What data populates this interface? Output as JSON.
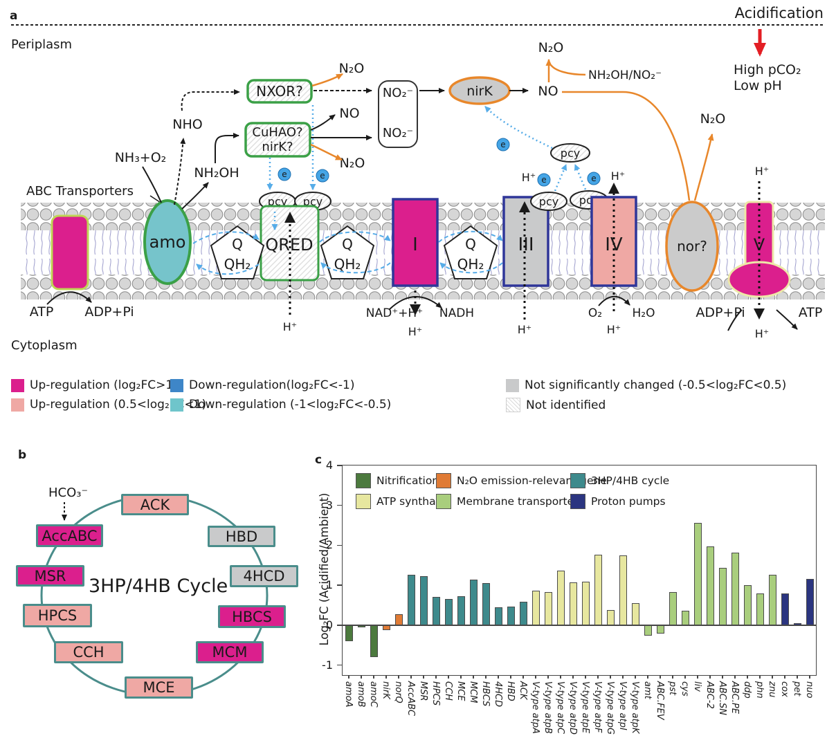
{
  "panel_a": {
    "tag": "a",
    "periplasm": "Periplasm",
    "cytoplasm": "Cytoplasm",
    "abc_transporters": "ABC Transporters",
    "acidification": "Acidification",
    "high_pco2": "High pCO₂",
    "low_ph": "Low pH",
    "atp": "ATP",
    "adp_pi": "ADP+Pi",
    "nh3_o2": "NH₃+O₂",
    "nho": "NHO",
    "nh2oh": "NH₂OH",
    "amo": "amo",
    "nxor": "NXOR?",
    "cuhao": "CuHAO?",
    "nirk_q": "nirK?",
    "n2o": "N₂O",
    "no": "NO",
    "no2": "NO₂⁻",
    "nirk": "nirK",
    "nh2oh_no2": "NH₂OH/NO₂⁻",
    "pcy": "pcy",
    "e": "e",
    "q": "Q",
    "qh2": "QH₂",
    "qred": "QRED",
    "h": "H⁺",
    "complex_i": "I",
    "complex_iii": "III",
    "complex_iv": "IV",
    "complex_v": "V",
    "nor": "nor?",
    "nad_h": "NAD⁺+H⁺",
    "nadh": "NADH",
    "o2": "O₂",
    "h2o": "H₂O"
  },
  "legend": {
    "items": [
      {
        "swatch": "magenta",
        "label": "Up-regulation (log₂FC>1)"
      },
      {
        "swatch": "pink",
        "label": "Up-regulation (0.5<log₂FC<1)"
      },
      {
        "swatch": "blue",
        "label": "Down-regulation(log₂FC<-1)"
      },
      {
        "swatch": "teal",
        "label": "Down-regulation (-1<log₂FC<-0.5)"
      },
      {
        "swatch": "gray",
        "label": "Not significantly changed (-0.5<log₂FC<0.5)"
      },
      {
        "swatch": "hatch",
        "label": "Not identified"
      }
    ]
  },
  "panel_b": {
    "tag": "b",
    "hco3": "HCO₃⁻",
    "title": "3HP/4HB Cycle",
    "nodes": [
      {
        "label": "ACK",
        "status": "up_mod"
      },
      {
        "label": "HBD",
        "status": "ns"
      },
      {
        "label": "4HCD",
        "status": "ns"
      },
      {
        "label": "HBCS",
        "status": "up_strong"
      },
      {
        "label": "MCM",
        "status": "up_strong"
      },
      {
        "label": "MCE",
        "status": "up_mod"
      },
      {
        "label": "CCH",
        "status": "up_mod"
      },
      {
        "label": "HPCS",
        "status": "up_mod"
      },
      {
        "label": "MSR",
        "status": "up_strong"
      },
      {
        "label": "AccABC",
        "status": "up_strong"
      }
    ]
  },
  "panel_c": {
    "tag": "c"
  },
  "chart_data": {
    "type": "bar",
    "title": "",
    "xlabel": "",
    "ylabel": "Log₂FC (Acidified/Ambient)",
    "ylim": [
      -1.25,
      4
    ],
    "yticks": [
      4,
      3,
      2,
      1,
      0,
      -1
    ],
    "grid": false,
    "legend_position": "top-inside",
    "group_colors": {
      "nit": "#4C7A3E",
      "n2o": "#E07B35",
      "cyc": "#3E8A8C",
      "atp": "#E7E79F",
      "mem": "#A9CE7D",
      "pump": "#2B3580"
    },
    "legend": [
      {
        "label": "Nitrification",
        "group": "nit"
      },
      {
        "label": "N₂O emission-relevant gene",
        "group": "n2o"
      },
      {
        "label": "3HP/4HB cycle",
        "group": "cyc"
      },
      {
        "label": "ATP synthase",
        "group": "atp"
      },
      {
        "label": "Membrane transporters",
        "group": "mem"
      },
      {
        "label": "Proton pumps",
        "group": "pump"
      }
    ],
    "bars": [
      {
        "label": "amoA",
        "value": -0.4,
        "group": "nit"
      },
      {
        "label": "amoB",
        "value": -0.05,
        "group": "nit"
      },
      {
        "label": "amoC",
        "value": -0.8,
        "group": "nit"
      },
      {
        "label": "nirK",
        "value": -0.12,
        "group": "n2o"
      },
      {
        "label": "norQ",
        "value": 0.27,
        "group": "n2o"
      },
      {
        "label": "AccABC",
        "value": 1.27,
        "group": "cyc"
      },
      {
        "label": "MSR",
        "value": 1.22,
        "group": "cyc"
      },
      {
        "label": "HPCS",
        "value": 0.7,
        "group": "cyc"
      },
      {
        "label": "CCH",
        "value": 0.66,
        "group": "cyc"
      },
      {
        "label": "MCE",
        "value": 0.72,
        "group": "cyc"
      },
      {
        "label": "MCM",
        "value": 1.14,
        "group": "cyc"
      },
      {
        "label": "HBCS",
        "value": 1.05,
        "group": "cyc"
      },
      {
        "label": "4HCD",
        "value": 0.45,
        "group": "cyc"
      },
      {
        "label": "HBD",
        "value": 0.46,
        "group": "cyc"
      },
      {
        "label": "ACK",
        "value": 0.59,
        "group": "cyc"
      },
      {
        "label": "V-type atpA",
        "value": 0.86,
        "group": "atp"
      },
      {
        "label": "V-type atpB",
        "value": 0.83,
        "group": "atp"
      },
      {
        "label": "V-type atpC",
        "value": 1.36,
        "group": "atp"
      },
      {
        "label": "V-type atpD",
        "value": 1.07,
        "group": "atp"
      },
      {
        "label": "V-type atpE",
        "value": 1.09,
        "group": "atp"
      },
      {
        "label": "V-type atpF",
        "value": 1.77,
        "group": "atp"
      },
      {
        "label": "V-type atpG",
        "value": 0.38,
        "group": "atp"
      },
      {
        "label": "V-type atpI",
        "value": 1.74,
        "group": "atp"
      },
      {
        "label": "V-type atpK",
        "value": 0.56,
        "group": "atp"
      },
      {
        "label": "amt",
        "value": -0.26,
        "group": "mem"
      },
      {
        "label": "ABC.FEV",
        "value": -0.21,
        "group": "mem"
      },
      {
        "label": "pst",
        "value": 0.83,
        "group": "mem"
      },
      {
        "label": "cys",
        "value": 0.36,
        "group": "mem"
      },
      {
        "label": "liv",
        "value": 2.56,
        "group": "mem"
      },
      {
        "label": "ABC-2",
        "value": 1.97,
        "group": "mem"
      },
      {
        "label": "ABC.SN",
        "value": 1.44,
        "group": "mem"
      },
      {
        "label": "ABC.PE",
        "value": 1.81,
        "group": "mem"
      },
      {
        "label": "ddp",
        "value": 1.0,
        "group": "mem"
      },
      {
        "label": "phn",
        "value": 0.8,
        "group": "mem"
      },
      {
        "label": "znu",
        "value": 1.27,
        "group": "mem"
      },
      {
        "label": "cox",
        "value": 0.8,
        "group": "pump"
      },
      {
        "label": "pet",
        "value": 0.05,
        "group": "pump"
      },
      {
        "label": "nuo",
        "value": 1.15,
        "group": "pump"
      }
    ]
  },
  "colors": {
    "up_strong": "#DB1F8D",
    "up_moderate": "#EFA8A4",
    "down_strong": "#3E86C8",
    "down_moderate": "#6FC5CB",
    "not_significant": "#C9CACB",
    "green_border": "#3BA047",
    "orange": "#E8872B",
    "dark_blue_border": "#2F3699",
    "pale_yellow_border": "#EDE8A8",
    "yellow_green_border": "#BFD554",
    "teal_circle": "#4A8D8B",
    "electron_blue": "#56ACE8",
    "red": "#E31E24"
  }
}
